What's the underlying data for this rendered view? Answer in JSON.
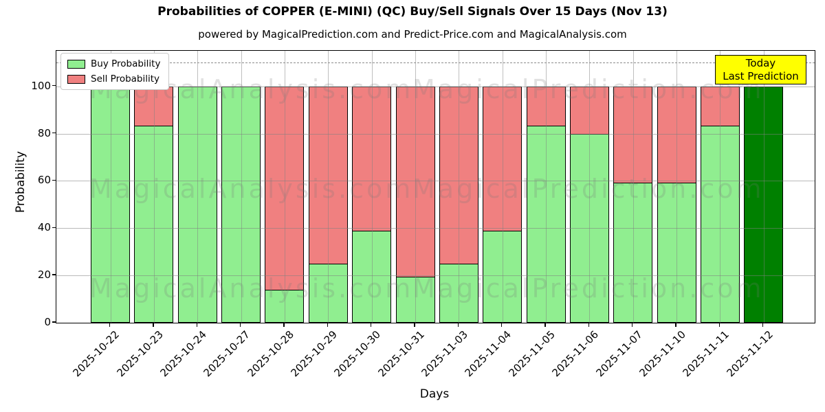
{
  "title": "Probabilities of COPPER (E-MINI) (QC) Buy/Sell Signals Over 15 Days (Nov 13)",
  "subtitle": "powered by MagicalPrediction.com and Predict-Price.com and MagicalAnalysis.com",
  "legend": {
    "buy_label": "Buy Probability",
    "sell_label": "Sell Probability"
  },
  "annotation": {
    "line1": "Today",
    "line2": "Last Prediction"
  },
  "watermarks": {
    "left_text": "MagicalAnalysis.com",
    "right_text": "MagicalPrediction.com"
  },
  "colors": {
    "buy": "#90EE90",
    "sell": "#F08080",
    "today_bar": "#008000",
    "annotation_bg": "#FFFF00",
    "grid": "#b0b0b0"
  },
  "chart_data": {
    "type": "bar",
    "stacked": true,
    "title": "Probabilities of COPPER (E-MINI) (QC) Buy/Sell Signals Over 15 Days (Nov 13)",
    "xlabel": "Days",
    "ylabel": "Probability",
    "categories": [
      "2025-10-22",
      "2025-10-23",
      "2025-10-24",
      "2025-10-27",
      "2025-10-28",
      "2025-10-29",
      "2025-10-30",
      "2025-10-31",
      "2025-11-03",
      "2025-11-04",
      "2025-11-05",
      "2025-11-06",
      "2025-11-07",
      "2025-11-10",
      "2025-11-11",
      "2025-11-12"
    ],
    "series": [
      {
        "name": "Buy Probability",
        "color": "#90EE90",
        "values": [
          100,
          83.5,
          100,
          100,
          14,
          25,
          39,
          19.5,
          25,
          39,
          83.5,
          80,
          59.5,
          59.5,
          83.5,
          100
        ]
      },
      {
        "name": "Sell Probability",
        "color": "#F08080",
        "values": [
          0,
          16.5,
          0,
          0,
          86,
          75,
          61,
          80.5,
          75,
          61,
          16.5,
          20,
          40.5,
          40.5,
          16.5,
          0
        ]
      }
    ],
    "today_index": 15,
    "today_bar_color": "#008000",
    "yticks": [
      0,
      20,
      40,
      60,
      80,
      100
    ],
    "ylim": [
      0,
      115
    ],
    "dashed_line_y": 110,
    "grid": true,
    "legend_position": "upper left"
  }
}
